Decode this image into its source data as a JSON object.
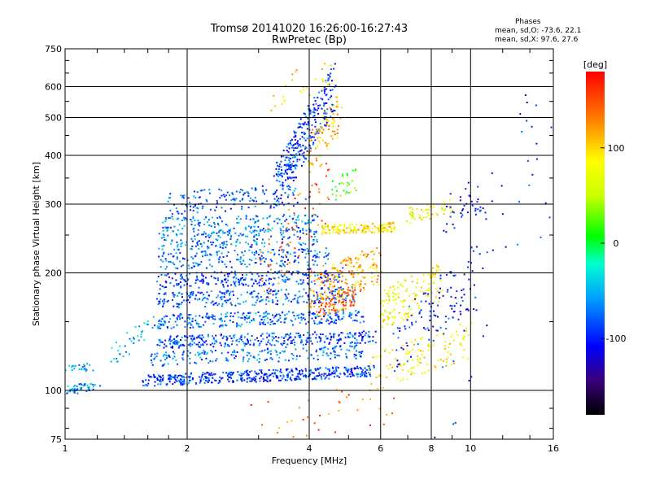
{
  "chart_data": {
    "type": "scatter",
    "title": "Tromsø 20141020 16:26:00-16:27:43",
    "subtitle": "RwPretec (Bp)",
    "xlabel": "Frequency [MHz]",
    "ylabel": "Stationary phase Virtual Height [km]",
    "xscale": "log",
    "yscale": "log",
    "xlim": [
      1,
      16
    ],
    "ylim": [
      75,
      750
    ],
    "x_ticks": [
      1,
      2,
      4,
      6,
      8,
      10,
      16
    ],
    "y_ticks": [
      75,
      100,
      200,
      300,
      400,
      500,
      600,
      750
    ],
    "grid": true,
    "colorbar": {
      "label": "[deg]",
      "range": [
        -180,
        180
      ],
      "ticks": [
        100,
        0,
        -100
      ],
      "colormap": "rainbow"
    },
    "phases": {
      "title": "Phases",
      "o_mode": "mean, sd,O: -73.6, 22.1",
      "x_mode": "mean, sd,X:  97.6, 27.6"
    },
    "traces": [
      {
        "x0": 1.0,
        "x1": 1.22,
        "h0": 100,
        "h1": 103,
        "phase": -65,
        "n": 45,
        "spread": 0.012
      },
      {
        "x0": 1.0,
        "x1": 1.18,
        "h0": 113,
        "h1": 115,
        "phase": -55,
        "n": 22,
        "spread": 0.01
      },
      {
        "x0": 1.3,
        "x1": 1.6,
        "h0": 122,
        "h1": 145,
        "phase": -45,
        "n": 35,
        "spread": 0.03
      },
      {
        "x0": 1.55,
        "x1": 5.8,
        "h0": 106,
        "h1": 112,
        "phase": -90,
        "n": 460,
        "spread": 0.015
      },
      {
        "x0": 1.6,
        "x1": 5.5,
        "h0": 120,
        "h1": 126,
        "phase": -70,
        "n": 200,
        "spread": 0.018
      },
      {
        "x0": 1.7,
        "x1": 5.8,
        "h0": 133,
        "h1": 137,
        "phase": -85,
        "n": 320,
        "spread": 0.016
      },
      {
        "x0": 1.65,
        "x1": 5.5,
        "h0": 150,
        "h1": 155,
        "phase": -75,
        "n": 300,
        "spread": 0.018
      },
      {
        "x0": 1.7,
        "x1": 5.2,
        "h0": 170,
        "h1": 176,
        "phase": -80,
        "n": 260,
        "spread": 0.02
      },
      {
        "x0": 1.7,
        "x1": 4.8,
        "h0": 190,
        "h1": 197,
        "phase": -85,
        "n": 240,
        "spread": 0.02
      },
      {
        "x0": 1.7,
        "x1": 4.5,
        "h0": 215,
        "h1": 220,
        "phase": -75,
        "n": 200,
        "spread": 0.022
      },
      {
        "x0": 1.7,
        "x1": 4.2,
        "h0": 240,
        "h1": 248,
        "phase": -70,
        "n": 180,
        "spread": 0.022
      },
      {
        "x0": 1.75,
        "x1": 4.2,
        "h0": 265,
        "h1": 270,
        "phase": -65,
        "n": 170,
        "spread": 0.022
      },
      {
        "x0": 1.8,
        "x1": 4.0,
        "h0": 300,
        "h1": 320,
        "phase": -80,
        "n": 140,
        "spread": 0.03
      },
      {
        "x0": 3.3,
        "x1": 4.6,
        "h0": 330,
        "h1": 600,
        "phase": -90,
        "n": 300,
        "spread": 0.06
      },
      {
        "x0": 4.0,
        "x1": 6.0,
        "h0": 180,
        "h1": 210,
        "phase": 120,
        "n": 200,
        "spread": 0.05
      },
      {
        "x0": 4.2,
        "x1": 5.2,
        "h0": 160,
        "h1": 175,
        "phase": 140,
        "n": 90,
        "spread": 0.025
      },
      {
        "x0": 4.3,
        "x1": 6.5,
        "h0": 258,
        "h1": 262,
        "phase": 90,
        "n": 150,
        "spread": 0.012
      },
      {
        "x0": 4.0,
        "x1": 4.8,
        "h0": 400,
        "h1": 520,
        "phase": 110,
        "n": 80,
        "spread": 0.05
      },
      {
        "x0": 6.0,
        "x1": 8.5,
        "h0": 160,
        "h1": 190,
        "phase": 80,
        "n": 140,
        "spread": 0.05
      },
      {
        "x0": 7.0,
        "x1": 9.0,
        "h0": 280,
        "h1": 295,
        "phase": 75,
        "n": 50,
        "spread": 0.02
      },
      {
        "x0": 5.5,
        "x1": 10.0,
        "h0": 110,
        "h1": 135,
        "phase": 85,
        "n": 120,
        "spread": 0.05
      },
      {
        "x0": 6.5,
        "x1": 10.5,
        "h0": 130,
        "h1": 200,
        "phase": -100,
        "n": 110,
        "spread": 0.08
      },
      {
        "x0": 8.5,
        "x1": 11.5,
        "h0": 280,
        "h1": 330,
        "phase": -110,
        "n": 40,
        "spread": 0.05
      },
      {
        "x0": 3.0,
        "x1": 4.5,
        "h0": 200,
        "h1": 330,
        "phase": 140,
        "n": 70,
        "spread": 0.09
      },
      {
        "x0": 3.2,
        "x1": 4.5,
        "h0": 560,
        "h1": 660,
        "phase": 100,
        "n": 30,
        "spread": 0.04
      },
      {
        "x0": 4.5,
        "x1": 5.3,
        "h0": 320,
        "h1": 350,
        "phase": 20,
        "n": 30,
        "spread": 0.03
      },
      {
        "x0": 2.8,
        "x1": 6.5,
        "h0": 80,
        "h1": 95,
        "phase": 140,
        "n": 40,
        "spread": 0.06
      },
      {
        "x0": 8.0,
        "x1": 16.0,
        "h0": 95,
        "h1": 500,
        "phase": -100,
        "n": 45,
        "spread": 0.25
      }
    ]
  }
}
